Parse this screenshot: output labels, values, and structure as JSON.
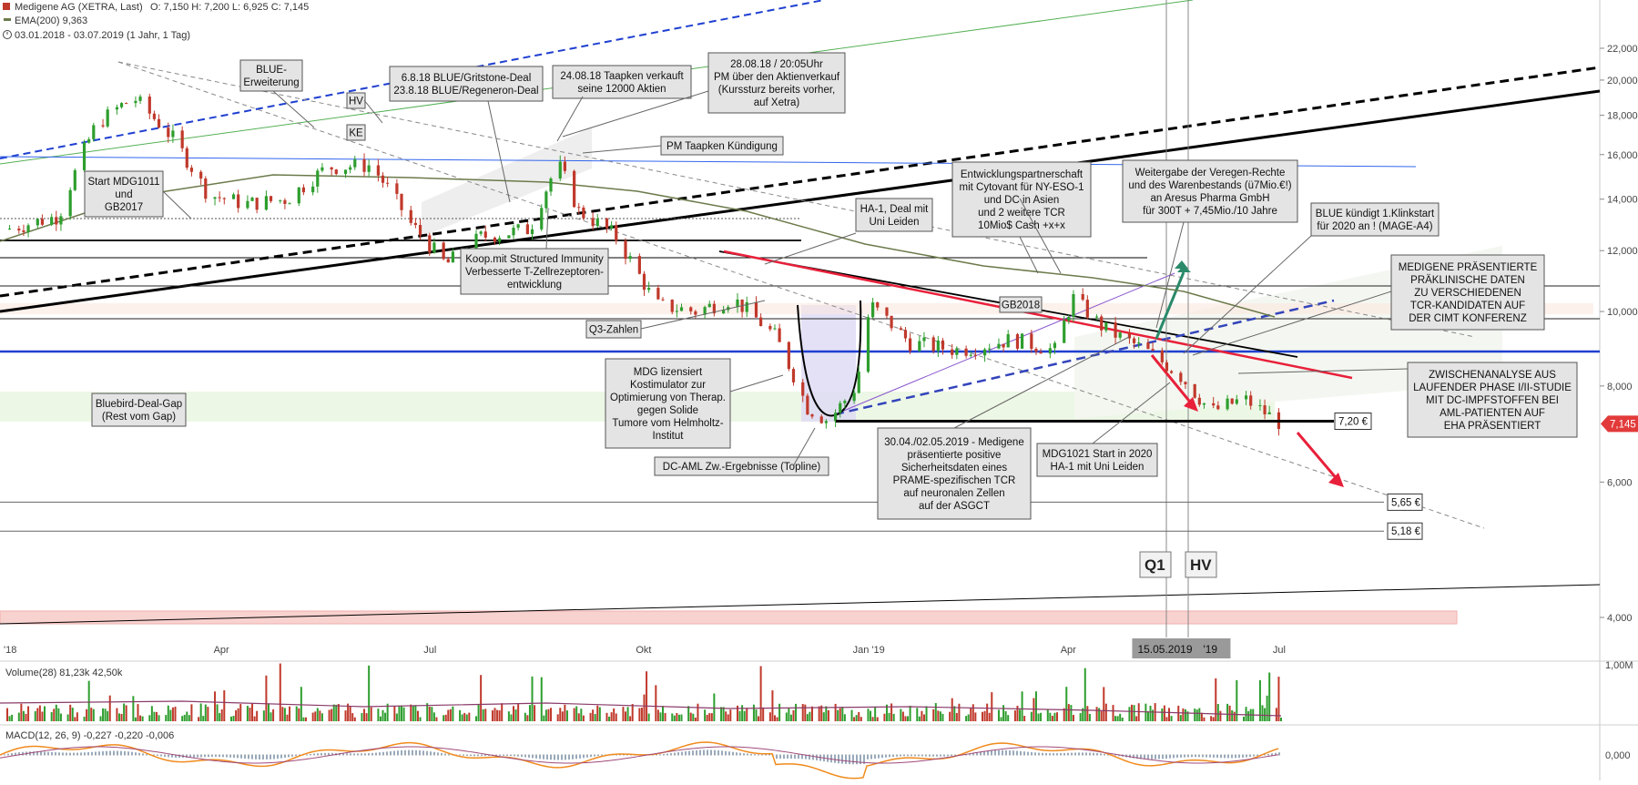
{
  "header": {
    "instrument": "Medigene AG (XETRA, Last)",
    "ohlc": "O: 7,150  H: 7,200  L: 6,925  C: 7,145",
    "ema": "EMA(200)  9,363",
    "range": "03.01.2018 - 03.07.2019  (1 Jahr, 1 Tag)"
  },
  "colors": {
    "up": "#2e9e2e",
    "down": "#c0392b",
    "ema": "#6b7a4a",
    "blue": "#1f3fd0",
    "red_line": "#e8203a",
    "price_badge": "#e23a3a",
    "macd": "#f08a1c",
    "signal": "#a04a7a"
  },
  "chart_data": [
    {
      "type": "candlestick",
      "title": "",
      "ylim": [
        3.6,
        25
      ],
      "y_scale": "log",
      "y_ticks": [
        "22,000",
        "20,000",
        "18,000",
        "16,000",
        "14,000",
        "12,000",
        "10,000",
        "8,000",
        "6,000",
        "4,000"
      ],
      "y_tick_values": [
        22,
        20,
        18,
        16,
        14,
        12,
        10,
        8,
        6,
        4
      ],
      "x_tick_labels": [
        "'18",
        "Apr",
        "Jul",
        "Okt",
        "Jan '19",
        "Apr",
        "Jul"
      ],
      "x_tick_dates": [
        "2018-01-03",
        "2018-04-03",
        "2018-07-02",
        "2018-10-01",
        "2019-01-02",
        "2019-04-01",
        "2019-07-01"
      ],
      "close_path": [
        [
          "2018-01-03",
          12.8
        ],
        [
          "2018-01-25",
          13.3
        ],
        [
          "2018-02-10",
          17.5
        ],
        [
          "2018-02-26",
          19.0
        ],
        [
          "2018-03-15",
          16.8
        ],
        [
          "2018-03-30",
          14.2
        ],
        [
          "2018-04-15",
          13.8
        ],
        [
          "2018-05-03",
          14.0
        ],
        [
          "2018-05-20",
          15.4
        ],
        [
          "2018-06-08",
          15.5
        ],
        [
          "2018-06-25",
          13.0
        ],
        [
          "2018-07-10",
          11.5
        ],
        [
          "2018-07-25",
          12.5
        ],
        [
          "2018-08-15",
          12.8
        ],
        [
          "2018-08-27",
          15.6
        ],
        [
          "2018-09-05",
          13.5
        ],
        [
          "2018-09-20",
          12.6
        ],
        [
          "2018-10-08",
          10.2
        ],
        [
          "2018-10-25",
          10.0
        ],
        [
          "2018-11-10",
          10.4
        ],
        [
          "2018-11-28",
          9.3
        ],
        [
          "2018-12-12",
          7.5
        ],
        [
          "2018-12-21",
          7.2
        ],
        [
          "2019-01-02",
          8.0
        ],
        [
          "2019-01-08",
          10.2
        ],
        [
          "2019-01-25",
          9.1
        ],
        [
          "2019-02-15",
          8.9
        ],
        [
          "2019-03-10",
          9.2
        ],
        [
          "2019-03-28",
          8.9
        ],
        [
          "2019-04-05",
          10.4
        ],
        [
          "2019-04-18",
          9.5
        ],
        [
          "2019-05-06",
          8.9
        ],
        [
          "2019-05-20",
          8.3
        ],
        [
          "2019-06-03",
          7.4
        ],
        [
          "2019-06-17",
          7.7
        ],
        [
          "2019-07-03",
          7.145
        ]
      ],
      "horizontal_levels": [
        {
          "value": 7.2,
          "label": "7,20 €"
        },
        {
          "value": 5.65,
          "label": "5,65 €"
        },
        {
          "value": 5.18,
          "label": "5,18 €"
        }
      ],
      "last_price": {
        "value": 7.145,
        "label": "7,145"
      },
      "markers": [
        {
          "label": "Q1",
          "date": "2019-05-15"
        },
        {
          "label": "HV",
          "date": "2019-05-28"
        }
      ],
      "crosshair_date_label": "15.05.2019",
      "crosshair_suffix": "'19"
    },
    {
      "type": "bar",
      "title": "Volume(28)  81,23k  42,50k",
      "y_ticks": [
        "1,00M"
      ],
      "y_tick_values": [
        1.0
      ]
    },
    {
      "type": "line",
      "title": "MACD(12, 26, 9)  -0,227  -0,220  -0,006",
      "y_ticks": [
        "0,000"
      ],
      "y_tick_values": [
        0
      ]
    }
  ],
  "annotations": [
    {
      "lines": [
        "BLUE-",
        "Erweiterung"
      ]
    },
    {
      "lines": [
        "HV"
      ]
    },
    {
      "lines": [
        "KE"
      ]
    },
    {
      "lines": [
        "6.8.18 BLUE/Gritstone-Deal",
        "23.8.18 BLUE/Regeneron-Deal"
      ]
    },
    {
      "lines": [
        "24.08.18 Taapken verkauft",
        "seine 12000 Aktien"
      ]
    },
    {
      "lines": [
        "28.08.18 / 20:05Uhr",
        "PM über den Aktienverkauf",
        "(Kurssturz bereits vorher,",
        "auf Xetra)"
      ]
    },
    {
      "lines": [
        "PM Taapken Kündigung"
      ]
    },
    {
      "lines": [
        "Start MDG1011",
        "und",
        "GB2017"
      ]
    },
    {
      "lines": [
        "Koop.mit Structured Immunity",
        "Verbesserte T-Zellrezeptoren-",
        "entwicklung"
      ]
    },
    {
      "lines": [
        "HA-1, Deal mit",
        "Uni Leiden"
      ]
    },
    {
      "lines": [
        "Entwicklungspartnerschaft",
        "mit Cytovant für NY-ESO-1",
        "und DC in Asien",
        "und 2 weitere TCR",
        "10Mio$ Cash +x+x"
      ]
    },
    {
      "lines": [
        "Weitergabe der Veregen-Rechte",
        "und des Warenbestands (ü7Mio.€!)",
        "an Aresus Pharma GmbH",
        "für 300T + 7,45Mio./10 Jahre"
      ]
    },
    {
      "lines": [
        "BLUE kündigt 1.Klinkstart",
        "für 2020 an ! (MAGE-A4)"
      ]
    },
    {
      "lines": [
        "MEDIGENE PRÄSENTIERTE",
        "PRÄKLINISCHE DATEN",
        "ZU VERSCHIEDENEN",
        "TCR-KANDIDATEN AUF",
        "DER CIMT KONFERENZ"
      ]
    },
    {
      "lines": [
        "GB2018"
      ]
    },
    {
      "lines": [
        "Q3-Zahlen"
      ]
    },
    {
      "lines": [
        "MDG lizensiert",
        "Kostimulator zur",
        "Optimierung von Therap.",
        "gegen Solide",
        "Tumore vom Helmholtz-",
        "Institut"
      ]
    },
    {
      "lines": [
        "DC-AML  Zw.-Ergebnisse (Topline)"
      ]
    },
    {
      "lines": [
        "Bluebird-Deal-Gap",
        "(Rest vom Gap)"
      ]
    },
    {
      "lines": [
        "30.04./02.05.2019 - Medigene",
        "präsentierte positive",
        "Sicherheitsdaten eines",
        "PRAME-spezifischen TCR",
        "auf neuronalen Zellen",
        "auf der ASGCT"
      ]
    },
    {
      "lines": [
        "MDG1021 Start in 2020",
        "HA-1 mit Uni Leiden"
      ]
    },
    {
      "lines": [
        "ZWISCHENANALYSE AUS",
        "LAUFENDER PHASE I/II-STUDIE",
        "MIT DC-IMPFSTOFFEN BEI",
        "AML-PATIENTEN AUF",
        "EHA PRÄSENTIERT"
      ]
    }
  ]
}
